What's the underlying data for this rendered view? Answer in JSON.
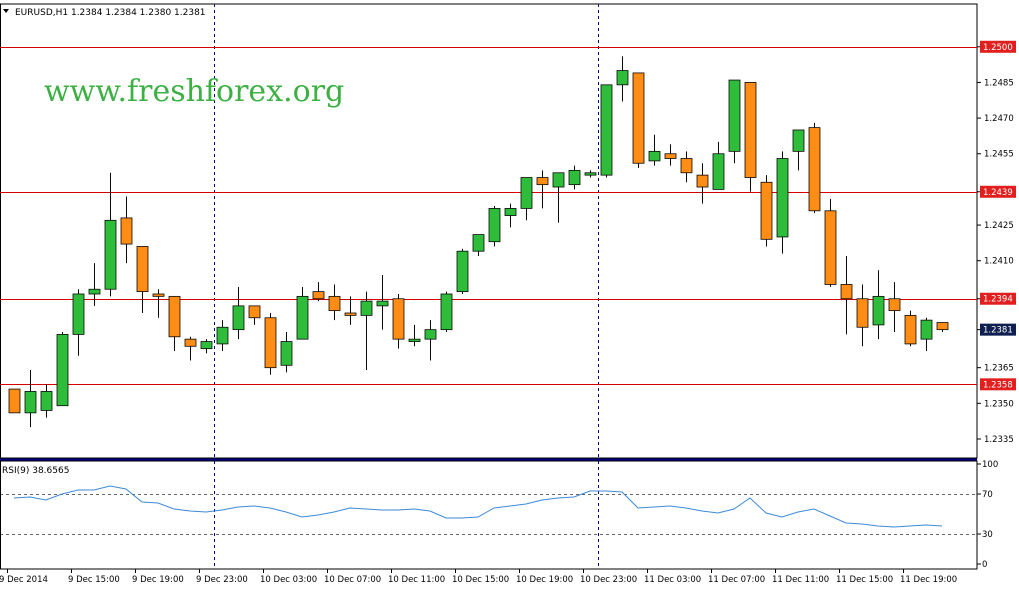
{
  "window": {
    "symbol_title": "EURUSD,H1  1.2384 1.2384 1.2380 1.2381",
    "watermark": "www.freshforex.org"
  },
  "colors": {
    "background": "#ffffff",
    "bull": "#2ebd3a",
    "bear": "#ff8c14",
    "candle_outline": "#0a0a0a",
    "level_line": "#d40000",
    "level_tag": "#e21f1f",
    "current_tag": "#0f1f4f",
    "rsi_line": "#3c8ad8",
    "grid": "#000000",
    "frame": "#000080"
  },
  "chart_data": [
    {
      "type": "candlestick",
      "symbol": "EURUSD",
      "timeframe": "H1",
      "ylim": [
        1.2327,
        1.2518
      ],
      "y_ticks": [
        "1.2500",
        "1.2485",
        "1.2470",
        "1.2455",
        "1.2439",
        "1.2425",
        "1.2410",
        "1.2394",
        "1.2381",
        "1.2365",
        "1.2350",
        "1.2335"
      ],
      "x_ticks": [
        "9 Dec 2014",
        "9 Dec 15:00",
        "9 Dec 19:00",
        "9 Dec 23:00",
        "10 Dec 03:00",
        "10 Dec 07:00",
        "10 Dec 11:00",
        "10 Dec 15:00",
        "10 Dec 19:00",
        "10 Dec 23:00",
        "11 Dec 03:00",
        "11 Dec 07:00",
        "11 Dec 11:00",
        "11 Dec 15:00",
        "11 Dec 19:00"
      ],
      "x_tick_index": [
        0,
        4,
        8,
        12,
        16,
        20,
        24,
        28,
        32,
        36,
        40,
        44,
        48,
        52,
        56
      ],
      "separators_index": [
        12.5,
        36.5
      ],
      "levels": [
        {
          "value": 1.25,
          "label": "1.2500"
        },
        {
          "value": 1.2439,
          "label": "1.2439"
        },
        {
          "value": 1.2394,
          "label": "1.2394"
        },
        {
          "value": 1.2358,
          "label": "1.2358"
        }
      ],
      "current_price": {
        "value": 1.2381,
        "label": "1.2381"
      },
      "ohlc": [
        [
          1.2356,
          1.2356,
          1.2346,
          1.2346
        ],
        [
          1.2346,
          1.2364,
          1.234,
          1.2355
        ],
        [
          1.2347,
          1.2358,
          1.2344,
          1.2355
        ],
        [
          1.2349,
          1.238,
          1.2349,
          1.2379
        ],
        [
          1.2379,
          1.2398,
          1.237,
          1.2396
        ],
        [
          1.2396,
          1.2409,
          1.2391,
          1.2398
        ],
        [
          1.2398,
          1.2447,
          1.2395,
          1.2427
        ],
        [
          1.2428,
          1.2437,
          1.2409,
          1.2417
        ],
        [
          1.2416,
          1.2416,
          1.2388,
          1.2397
        ],
        [
          1.2396,
          1.2398,
          1.2386,
          1.2395
        ],
        [
          1.2395,
          1.2395,
          1.2372,
          1.2378
        ],
        [
          1.2377,
          1.2378,
          1.2368,
          1.2374
        ],
        [
          1.2373,
          1.2377,
          1.2371,
          1.2376
        ],
        [
          1.2375,
          1.2385,
          1.2372,
          1.2382
        ],
        [
          1.2381,
          1.2399,
          1.2377,
          1.2391
        ],
        [
          1.2391,
          1.2391,
          1.2383,
          1.2386
        ],
        [
          1.2386,
          1.2388,
          1.2362,
          1.2365
        ],
        [
          1.2366,
          1.238,
          1.2363,
          1.2376
        ],
        [
          1.2377,
          1.2399,
          1.2377,
          1.2395
        ],
        [
          1.2397,
          1.2401,
          1.2393,
          1.2394
        ],
        [
          1.2395,
          1.24,
          1.2385,
          1.2389
        ],
        [
          1.2388,
          1.2395,
          1.2383,
          1.2387
        ],
        [
          1.2387,
          1.2397,
          1.2364,
          1.2393
        ],
        [
          1.2391,
          1.2404,
          1.2381,
          1.2393
        ],
        [
          1.2394,
          1.2396,
          1.2373,
          1.2377
        ],
        [
          1.2376,
          1.2383,
          1.2374,
          1.2377
        ],
        [
          1.2377,
          1.2385,
          1.2368,
          1.2381
        ],
        [
          1.2381,
          1.2397,
          1.238,
          1.2396
        ],
        [
          1.2397,
          1.2415,
          1.2396,
          1.2414
        ],
        [
          1.2414,
          1.2421,
          1.2412,
          1.2421
        ],
        [
          1.2418,
          1.2433,
          1.2416,
          1.2432
        ],
        [
          1.2429,
          1.2434,
          1.2424,
          1.2432
        ],
        [
          1.2432,
          1.2445,
          1.2427,
          1.2445
        ],
        [
          1.2445,
          1.2448,
          1.2432,
          1.2442
        ],
        [
          1.2441,
          1.2447,
          1.2426,
          1.2447
        ],
        [
          1.2442,
          1.245,
          1.244,
          1.2448
        ],
        [
          1.2446,
          1.2448,
          1.2445,
          1.2447
        ],
        [
          1.2446,
          1.2484,
          1.2445,
          1.2484
        ],
        [
          1.2484,
          1.2496,
          1.2477,
          1.249
        ],
        [
          1.2489,
          1.2489,
          1.2449,
          1.2451
        ],
        [
          1.2452,
          1.2463,
          1.245,
          1.2456
        ],
        [
          1.2455,
          1.2459,
          1.245,
          1.2453
        ],
        [
          1.2453,
          1.2456,
          1.2443,
          1.2447
        ],
        [
          1.2446,
          1.2451,
          1.2434,
          1.2441
        ],
        [
          1.244,
          1.246,
          1.244,
          1.2455
        ],
        [
          1.2456,
          1.2486,
          1.2451,
          1.2486
        ],
        [
          1.2485,
          1.2485,
          1.2439,
          1.2445
        ],
        [
          1.2443,
          1.2446,
          1.2416,
          1.2419
        ],
        [
          1.242,
          1.2456,
          1.2413,
          1.2453
        ],
        [
          1.2456,
          1.2465,
          1.2448,
          1.2465
        ],
        [
          1.2466,
          1.2468,
          1.243,
          1.2431
        ],
        [
          1.2431,
          1.2436,
          1.2399,
          1.24
        ],
        [
          1.24,
          1.2412,
          1.2379,
          1.2394
        ],
        [
          1.2394,
          1.24,
          1.2374,
          1.2382
        ],
        [
          1.2383,
          1.2406,
          1.2377,
          1.2395
        ],
        [
          1.2394,
          1.2401,
          1.238,
          1.2389
        ],
        [
          1.2387,
          1.2389,
          1.2374,
          1.2375
        ],
        [
          1.2377,
          1.2386,
          1.2372,
          1.2385
        ],
        [
          1.2384,
          1.2384,
          1.238,
          1.2381
        ]
      ]
    },
    {
      "type": "line",
      "title": "RSI(9) 38.6565",
      "period": 9,
      "value_label": "38.6565",
      "ylim": [
        0,
        100
      ],
      "y_ticks": [
        100,
        70,
        30,
        0
      ],
      "levels": [
        70,
        30
      ],
      "series": [
        {
          "values": [
            66,
            67,
            64,
            70,
            74,
            74,
            78,
            75,
            62,
            61,
            55,
            53,
            52,
            54,
            57,
            58,
            56,
            52,
            47,
            49,
            52,
            56,
            55,
            54,
            54,
            55,
            53,
            46,
            46,
            47,
            56,
            58,
            60,
            64,
            66,
            67,
            73,
            73,
            72,
            56,
            57,
            58,
            56,
            53,
            51,
            55,
            66,
            51,
            47,
            52,
            55,
            48,
            41,
            40,
            38,
            37,
            38,
            39,
            38
          ]
        }
      ]
    }
  ]
}
